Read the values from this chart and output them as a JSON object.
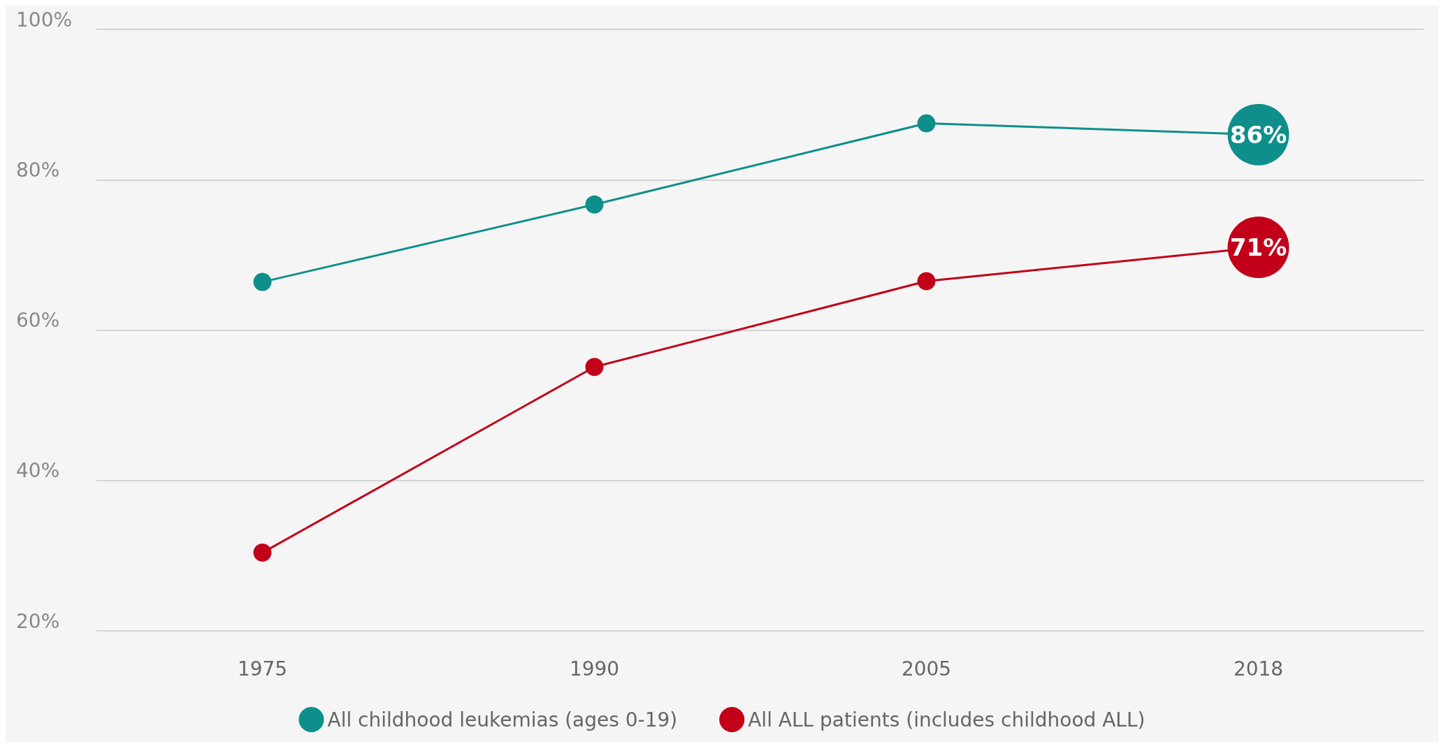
{
  "chart_data": {
    "type": "line",
    "categories": [
      "1975",
      "1990",
      "2005",
      "2018"
    ],
    "series": [
      {
        "name": "All childhood leukemias (ages 0-19)",
        "color": "#0e8f8b",
        "values": [
          66.4,
          76.7,
          87.5,
          86
        ],
        "value_labels": [
          null,
          null,
          null,
          "86%"
        ]
      },
      {
        "name": "All ALL patients (includes childhood ALL)",
        "color": "#c20019",
        "values": [
          30.4,
          55.1,
          66.5,
          71
        ],
        "value_labels": [
          null,
          null,
          null,
          "71%"
        ]
      }
    ],
    "ylim": [
      20,
      100
    ],
    "yticks": [
      {
        "value": 20,
        "label": "20%"
      },
      {
        "value": 40,
        "label": "40%"
      },
      {
        "value": 60,
        "label": "60%"
      },
      {
        "value": 80,
        "label": "80%"
      },
      {
        "value": 100,
        "label": "100%"
      }
    ],
    "grid": "y",
    "legend": "bottom",
    "marker": "circle"
  }
}
